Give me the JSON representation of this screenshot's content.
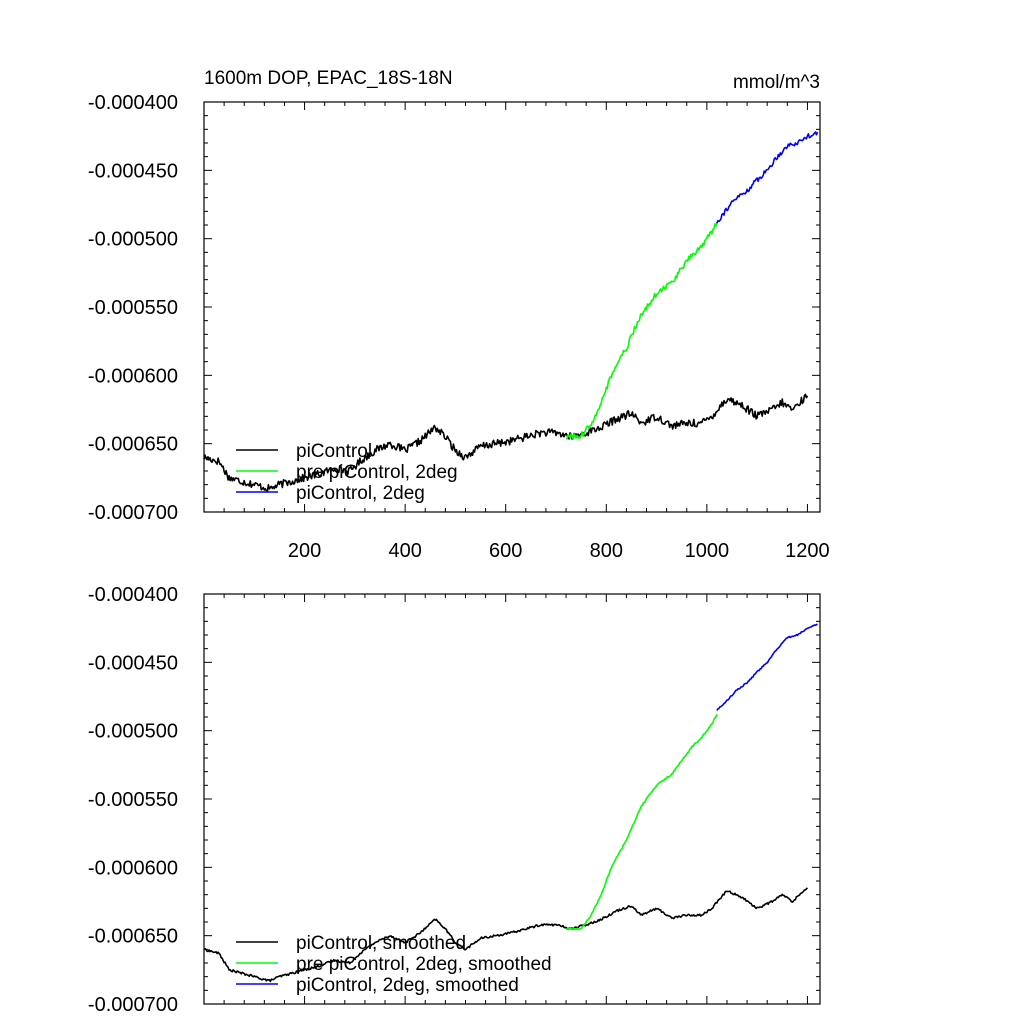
{
  "chart_data": [
    {
      "type": "line",
      "title": "1600m DOP, EPAC_18S-18N",
      "units": "mmol/m^3",
      "xlabel": "",
      "ylabel": "",
      "xlim": [
        0,
        1225
      ],
      "ylim": [
        -0.0007,
        -0.0004
      ],
      "xticks": [
        200,
        400,
        600,
        800,
        1000,
        1200
      ],
      "xtick_labels": [
        "200",
        "400",
        "600",
        "800",
        "1000",
        "1200"
      ],
      "yticks": [
        -0.0004,
        -0.00045,
        -0.0005,
        -0.00055,
        -0.0006,
        -0.00065,
        -0.0007
      ],
      "ytick_labels": [
        "-0.000400",
        "-0.000450",
        "-0.000500",
        "-0.000550",
        "-0.000600",
        "-0.000650",
        "-0.000700"
      ],
      "legend_position": "bottom-left",
      "series": [
        {
          "name": "piControl",
          "color": "#000000",
          "noise": 2.8e-06,
          "points": [
            [
              0,
              -0.00066
            ],
            [
              30,
              -0.000663
            ],
            [
              50,
              -0.000675
            ],
            [
              80,
              -0.000678
            ],
            [
              100,
              -0.00068
            ],
            [
              130,
              -0.000683
            ],
            [
              150,
              -0.00068
            ],
            [
              170,
              -0.000678
            ],
            [
              200,
              -0.000675
            ],
            [
              230,
              -0.000672
            ],
            [
              260,
              -0.000668
            ],
            [
              290,
              -0.00067
            ],
            [
              310,
              -0.000663
            ],
            [
              340,
              -0.000655
            ],
            [
              370,
              -0.00065
            ],
            [
              400,
              -0.000655
            ],
            [
              430,
              -0.000648
            ],
            [
              460,
              -0.000638
            ],
            [
              480,
              -0.000645
            ],
            [
              500,
              -0.000655
            ],
            [
              520,
              -0.00066
            ],
            [
              550,
              -0.000652
            ],
            [
              580,
              -0.00065
            ],
            [
              610,
              -0.000648
            ],
            [
              640,
              -0.000645
            ],
            [
              670,
              -0.000642
            ],
            [
              700,
              -0.000642
            ],
            [
              730,
              -0.000645
            ],
            [
              760,
              -0.000642
            ],
            [
              790,
              -0.000638
            ],
            [
              820,
              -0.000632
            ],
            [
              850,
              -0.000628
            ],
            [
              870,
              -0.000635
            ],
            [
              900,
              -0.00063
            ],
            [
              930,
              -0.000637
            ],
            [
              960,
              -0.000635
            ],
            [
              990,
              -0.000635
            ],
            [
              1010,
              -0.00063
            ],
            [
              1040,
              -0.000617
            ],
            [
              1070,
              -0.000622
            ],
            [
              1100,
              -0.00063
            ],
            [
              1130,
              -0.000625
            ],
            [
              1150,
              -0.00062
            ],
            [
              1170,
              -0.000625
            ],
            [
              1190,
              -0.000618
            ],
            [
              1200,
              -0.000615
            ]
          ]
        },
        {
          "name": "pre piControl, 2deg",
          "color": "#00ff00",
          "noise": 2.2e-06,
          "points": [
            [
              720,
              -0.000645
            ],
            [
              750,
              -0.000645
            ],
            [
              770,
              -0.000635
            ],
            [
              790,
              -0.00062
            ],
            [
              810,
              -0.0006
            ],
            [
              840,
              -0.00058
            ],
            [
              870,
              -0.000555
            ],
            [
              900,
              -0.00054
            ],
            [
              930,
              -0.000532
            ],
            [
              950,
              -0.000522
            ],
            [
              970,
              -0.000512
            ],
            [
              990,
              -0.000505
            ],
            [
              1010,
              -0.000495
            ],
            [
              1020,
              -0.000488
            ]
          ]
        },
        {
          "name": "piControl, 2deg",
          "color": "#0000ff",
          "noise": 1.8e-06,
          "points": [
            [
              1020,
              -0.000488
            ],
            [
              1040,
              -0.000478
            ],
            [
              1060,
              -0.00047
            ],
            [
              1080,
              -0.000465
            ],
            [
              1100,
              -0.000457
            ],
            [
              1120,
              -0.00045
            ],
            [
              1140,
              -0.00044
            ],
            [
              1160,
              -0.000432
            ],
            [
              1180,
              -0.00043
            ],
            [
              1200,
              -0.000425
            ],
            [
              1220,
              -0.000422
            ]
          ]
        }
      ]
    },
    {
      "type": "line",
      "title": "",
      "units": "",
      "xlabel": "",
      "ylabel": "",
      "xlim": [
        0,
        1225
      ],
      "ylim": [
        -0.0007,
        -0.0004
      ],
      "xticks": [
        200,
        400,
        600,
        800,
        1000,
        1200
      ],
      "xtick_labels": [],
      "yticks": [
        -0.0004,
        -0.00045,
        -0.0005,
        -0.00055,
        -0.0006,
        -0.00065,
        -0.0007
      ],
      "ytick_labels": [
        "-0.000400",
        "-0.000450",
        "-0.000500",
        "-0.000550",
        "-0.000600",
        "-0.000650",
        "-0.000700"
      ],
      "legend_position": "bottom-left",
      "series": [
        {
          "name": "piControl, smoothed",
          "color": "#000000",
          "noise": 8e-07,
          "points": [
            [
              0,
              -0.00066
            ],
            [
              30,
              -0.000663
            ],
            [
              50,
              -0.000675
            ],
            [
              80,
              -0.000678
            ],
            [
              100,
              -0.00068
            ],
            [
              130,
              -0.000683
            ],
            [
              150,
              -0.00068
            ],
            [
              170,
              -0.000678
            ],
            [
              200,
              -0.000675
            ],
            [
              230,
              -0.000672
            ],
            [
              260,
              -0.000668
            ],
            [
              290,
              -0.00067
            ],
            [
              310,
              -0.000663
            ],
            [
              340,
              -0.000655
            ],
            [
              370,
              -0.00065
            ],
            [
              400,
              -0.000655
            ],
            [
              430,
              -0.000648
            ],
            [
              460,
              -0.000638
            ],
            [
              480,
              -0.000645
            ],
            [
              500,
              -0.000655
            ],
            [
              520,
              -0.00066
            ],
            [
              550,
              -0.000652
            ],
            [
              580,
              -0.00065
            ],
            [
              610,
              -0.000648
            ],
            [
              640,
              -0.000645
            ],
            [
              670,
              -0.000642
            ],
            [
              700,
              -0.000642
            ],
            [
              730,
              -0.000645
            ],
            [
              760,
              -0.000642
            ],
            [
              790,
              -0.000638
            ],
            [
              820,
              -0.000632
            ],
            [
              850,
              -0.000628
            ],
            [
              870,
              -0.000635
            ],
            [
              900,
              -0.00063
            ],
            [
              930,
              -0.000637
            ],
            [
              960,
              -0.000635
            ],
            [
              990,
              -0.000635
            ],
            [
              1010,
              -0.00063
            ],
            [
              1040,
              -0.000617
            ],
            [
              1070,
              -0.000622
            ],
            [
              1100,
              -0.00063
            ],
            [
              1130,
              -0.000625
            ],
            [
              1150,
              -0.00062
            ],
            [
              1170,
              -0.000625
            ],
            [
              1190,
              -0.000618
            ],
            [
              1200,
              -0.000615
            ]
          ]
        },
        {
          "name": "pre piControl, 2deg, smoothed",
          "color": "#00ff00",
          "noise": 6e-07,
          "points": [
            [
              720,
              -0.000645
            ],
            [
              750,
              -0.000645
            ],
            [
              770,
              -0.000635
            ],
            [
              790,
              -0.00062
            ],
            [
              810,
              -0.0006
            ],
            [
              840,
              -0.00058
            ],
            [
              870,
              -0.000555
            ],
            [
              900,
              -0.00054
            ],
            [
              930,
              -0.000532
            ],
            [
              950,
              -0.000522
            ],
            [
              970,
              -0.000512
            ],
            [
              990,
              -0.000505
            ],
            [
              1010,
              -0.000495
            ],
            [
              1020,
              -0.000488
            ]
          ]
        },
        {
          "name": "piControl, 2deg, smoothed",
          "color": "#0000ff",
          "noise": 5e-07,
          "points": [
            [
              1020,
              -0.000485
            ],
            [
              1040,
              -0.000478
            ],
            [
              1060,
              -0.00047
            ],
            [
              1080,
              -0.000465
            ],
            [
              1100,
              -0.000457
            ],
            [
              1120,
              -0.00045
            ],
            [
              1140,
              -0.00044
            ],
            [
              1160,
              -0.000432
            ],
            [
              1180,
              -0.00043
            ],
            [
              1200,
              -0.000425
            ],
            [
              1220,
              -0.000422
            ]
          ]
        }
      ]
    }
  ]
}
